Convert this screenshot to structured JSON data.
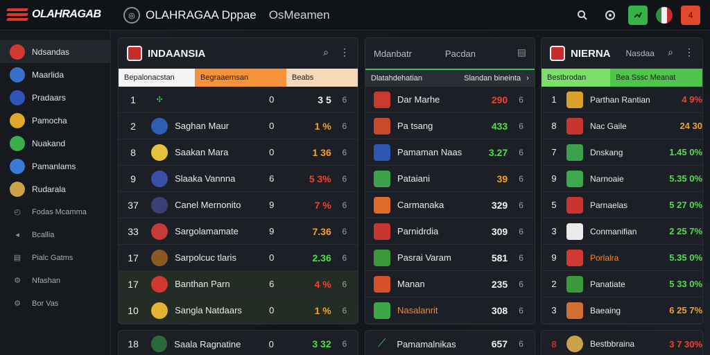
{
  "app": {
    "logo_text": "OLAHRAGAB",
    "header_title": "OLAHRAGAA Dppae",
    "header_subtitle": "OsMeamen"
  },
  "top_icons": [
    "search-icon",
    "settings-icon",
    "green-action-icon",
    "flag-icon",
    "notification-icon"
  ],
  "top_badge": "4",
  "sidebar": {
    "items": [
      {
        "label": "Ndsandas",
        "icon": "red-crest-icon",
        "color": "#d13a32"
      },
      {
        "label": "Maarlida",
        "icon": "shield-icon",
        "color": "#3a6fc9"
      },
      {
        "label": "Pradaars",
        "icon": "blue-crest-icon",
        "color": "#2e56b8"
      },
      {
        "label": "Pamocha",
        "icon": "yellow-crest-icon",
        "color": "#e0a82a"
      },
      {
        "label": "Nuakand",
        "icon": "green-crest-icon",
        "color": "#3bb04a"
      },
      {
        "label": "Pamanlams",
        "icon": "blue-shield-icon",
        "color": "#3a7ad6"
      },
      {
        "label": "Rudarala",
        "icon": "ball-icon",
        "color": "#c9a24a"
      },
      {
        "label": "Fodas Mcamma",
        "icon": "stats-icon",
        "color": ""
      },
      {
        "label": "Bcallia",
        "icon": "arrow-icon",
        "color": ""
      },
      {
        "label": "Pialc Gatms",
        "icon": "list-icon",
        "color": ""
      },
      {
        "label": "Nfashan",
        "icon": "settings-icon",
        "color": ""
      },
      {
        "label": "Bor Vas",
        "icon": "gear-icon",
        "color": ""
      }
    ]
  },
  "panel1": {
    "title": "INDAANSIA",
    "columns": [
      "Bepalonacstan",
      "Begraaernsan",
      "Beabs"
    ],
    "rows": [
      {
        "rank": "1",
        "team": "",
        "played": "0",
        "pts": "3 5",
        "more": "6",
        "tone": "wht",
        "badge": "#1c2026"
      },
      {
        "rank": "2",
        "team": "Saghan Maur",
        "played": "0",
        "pts": "1 %",
        "more": "6",
        "tone": "amb",
        "badge": "#2c5fb0"
      },
      {
        "rank": "8",
        "team": "Saakan Mara",
        "played": "0",
        "pts": "1 36",
        "more": "6",
        "tone": "amb",
        "badge": "#e8c23a"
      },
      {
        "rank": "9",
        "team": "Slaaka Vannna",
        "played": "6",
        "pts": "5 3%",
        "more": "6",
        "tone": "neg",
        "badge": "#3a4fa8"
      },
      {
        "rank": "37",
        "team": "Canel Mernonito",
        "played": "9",
        "pts": "7 %",
        "more": "6",
        "tone": "neg",
        "badge": "#3b3f78"
      },
      {
        "rank": "33",
        "team": "Sargolamamate",
        "played": "9",
        "pts": "7.36",
        "more": "6",
        "tone": "amb",
        "badge": "#c83a36"
      },
      {
        "rank": "17",
        "team": "Sarpolcuc tlaris",
        "played": "0",
        "pts": "2.36",
        "more": "6",
        "tone": "pos",
        "badge": "#8a5a22"
      },
      {
        "rank": "17",
        "team": "Banthan Parn",
        "played": "6",
        "pts": "4 %",
        "more": "6",
        "tone": "neg",
        "badge": "#d0372d"
      },
      {
        "rank": "10",
        "team": "Sangla Natdaars",
        "played": "0",
        "pts": "1 %",
        "more": "6",
        "tone": "amb",
        "badge": "#e3b530"
      }
    ],
    "bottom": {
      "rank": "18",
      "team": "Saala Ragnatine",
      "played": "0",
      "pts": "3 32",
      "more": "6",
      "tone": "pos"
    }
  },
  "panel2": {
    "title": "Mdanbatr",
    "subtitle": "Pacdan",
    "columns": [
      "Dlatahdehatian",
      "Slandan bineinta"
    ],
    "rows": [
      {
        "team": "Dar Marhe",
        "pts": "290",
        "more": "6",
        "tone": "neg",
        "badge": "#c73a2f"
      },
      {
        "team": "Pa tsang",
        "pts": "433",
        "more": "6",
        "tone": "pos",
        "badge": "#c74a2a"
      },
      {
        "team": "Pamaman Naas",
        "pts": "3.27",
        "more": "6",
        "tone": "pos",
        "badge": "#2d57b0"
      },
      {
        "team": "Pataiani",
        "pts": "39",
        "more": "6",
        "tone": "amb",
        "badge": "#3da04a"
      },
      {
        "team": "Carmanaka",
        "pts": "329",
        "more": "6",
        "tone": "wht",
        "badge": "#e06a2a"
      },
      {
        "team": "Parnidrdia",
        "pts": "309",
        "more": "6",
        "tone": "wht",
        "badge": "#c8372f"
      },
      {
        "team": "Pasrai Varam",
        "pts": "581",
        "more": "6",
        "tone": "wht",
        "badge": "#3a9a3a"
      },
      {
        "team": "Manan",
        "pts": "235",
        "more": "6",
        "tone": "wht",
        "badge": "#d6502a"
      },
      {
        "team": "Nasalanrit",
        "pts": "308",
        "more": "6",
        "tone": "wht",
        "badge": "#3ea64a"
      }
    ],
    "bottom": {
      "team": "Pamamalnikas",
      "pts": "657",
      "more": "6",
      "tone": "wht"
    }
  },
  "panel3": {
    "title": "NIERNA",
    "subtitle": "Nasdaa",
    "columns": [
      "Bestbrodan",
      "Bea Sssc Meanat"
    ],
    "rows": [
      {
        "rank": "1",
        "team": "Parthan Rantian",
        "pts": "4 9%",
        "tone": "neg",
        "badge": "#d8a22a"
      },
      {
        "rank": "8",
        "team": "Nac Gaile",
        "pts": "24 30",
        "tone": "amb",
        "badge": "#c8352f"
      },
      {
        "rank": "7",
        "team": "Dnskang",
        "pts": "1.45 0%",
        "tone": "pos",
        "badge": "#3aa04a"
      },
      {
        "rank": "9",
        "team": "Narnoaie",
        "pts": "5.35 0%",
        "tone": "pos",
        "badge": "#3ea84e"
      },
      {
        "rank": "5",
        "team": "Parnaelas",
        "pts": "5 27 0%",
        "tone": "pos",
        "badge": "#c8352f"
      },
      {
        "rank": "3",
        "team": "Conmanifian",
        "pts": "2 25 7%",
        "tone": "pos",
        "badge": "#eaeaea"
      },
      {
        "rank": "9",
        "team": "Porlalra",
        "pts": "5.35 0%",
        "tone": "pos",
        "badge": "#d13a32"
      },
      {
        "rank": "2",
        "team": "Panatiate",
        "pts": "5 33 0%",
        "tone": "pos",
        "badge": "#3a9a3a"
      },
      {
        "rank": "3",
        "team": "Baeaing",
        "pts": "6 25 7%",
        "tone": "amb",
        "badge": "#d07030"
      }
    ],
    "bottom": {
      "rank": "8",
      "team": "Bestbbraina",
      "pts": "3 7 30%",
      "tone": "neg"
    }
  }
}
